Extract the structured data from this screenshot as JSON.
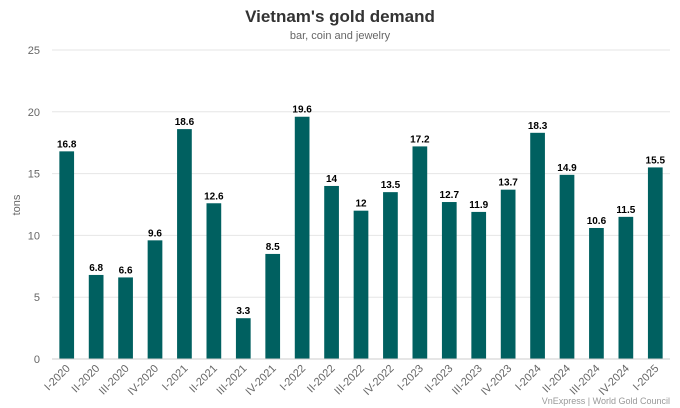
{
  "chart_data": {
    "type": "bar",
    "title": "Vietnam's gold demand",
    "subtitle": "bar, coin and jewelry",
    "ylabel": "tons",
    "xlabel": "",
    "ylim": [
      0,
      25
    ],
    "yticks": [
      0,
      5,
      10,
      15,
      20,
      25
    ],
    "grid": true,
    "legend": "none",
    "bar_color": "#006060",
    "categories": [
      "I-2020",
      "II-2020",
      "III-2020",
      "IV-2020",
      "I-2021",
      "II-2021",
      "III-2021",
      "IV-2021",
      "I-2022",
      "II-2022",
      "III-2022",
      "IV-2022",
      "I-2023",
      "II-2023",
      "III-2023",
      "IV-2023",
      "I-2024",
      "II-2024",
      "III-2024",
      "IV-2024",
      "I-2025"
    ],
    "values": [
      16.8,
      6.8,
      6.6,
      9.6,
      18.6,
      12.6,
      3.3,
      8.5,
      19.6,
      14,
      12,
      13.5,
      17.2,
      12.7,
      11.9,
      13.7,
      18.3,
      14.9,
      10.6,
      11.5,
      15.5
    ],
    "credit": "VnExpress | World Gold Council"
  }
}
